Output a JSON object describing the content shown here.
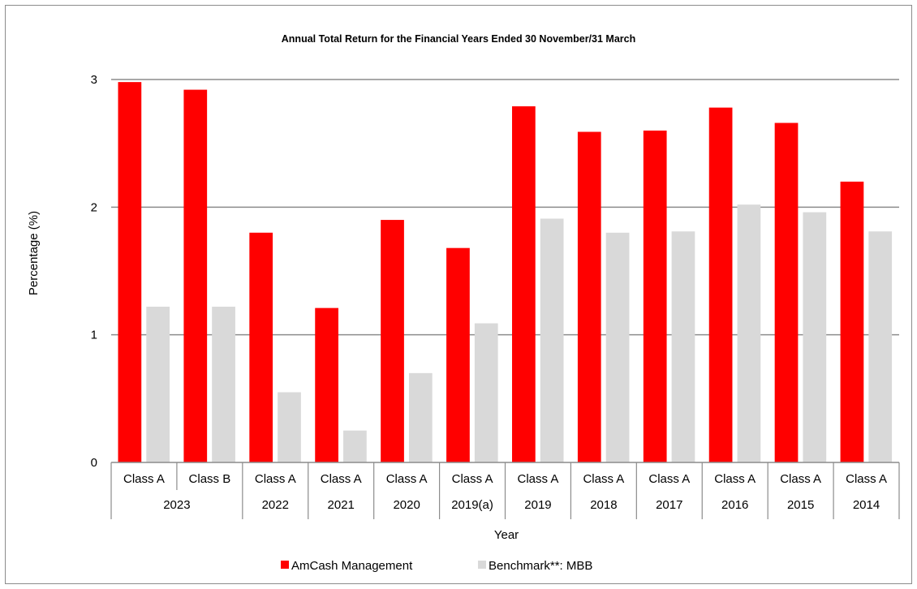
{
  "chart_data": {
    "type": "bar",
    "title": "Annual Total Return for the Financial Years Ended 30 November/31 March",
    "xlabel": "Year",
    "ylabel": "Percentage (%)",
    "ylim": [
      0,
      3
    ],
    "yticks": [
      0,
      1,
      2,
      3
    ],
    "grid": true,
    "legend_position": "bottom",
    "categories": [
      {
        "class": "Class A",
        "year": "2023"
      },
      {
        "class": "Class B",
        "year": "2023"
      },
      {
        "class": "Class A",
        "year": "2022"
      },
      {
        "class": "Class A",
        "year": "2021"
      },
      {
        "class": "Class A",
        "year": "2020"
      },
      {
        "class": "Class A",
        "year": "2019(a)"
      },
      {
        "class": "Class A",
        "year": "2019"
      },
      {
        "class": "Class A",
        "year": "2018"
      },
      {
        "class": "Class A",
        "year": "2017"
      },
      {
        "class": "Class A",
        "year": "2016"
      },
      {
        "class": "Class A",
        "year": "2015"
      },
      {
        "class": "Class A",
        "year": "2014"
      }
    ],
    "year_groups": [
      {
        "label": "2023",
        "span": 2
      },
      {
        "label": "2022",
        "span": 1
      },
      {
        "label": "2021",
        "span": 1
      },
      {
        "label": "2020",
        "span": 1
      },
      {
        "label": "2019(a)",
        "span": 1
      },
      {
        "label": "2019",
        "span": 1
      },
      {
        "label": "2018",
        "span": 1
      },
      {
        "label": "2017",
        "span": 1
      },
      {
        "label": "2016",
        "span": 1
      },
      {
        "label": "2015",
        "span": 1
      },
      {
        "label": "2014",
        "span": 1
      }
    ],
    "series": [
      {
        "name": "AmCash Management",
        "color": "#ff0000",
        "values": [
          2.98,
          2.92,
          1.8,
          1.21,
          1.9,
          1.68,
          2.79,
          2.59,
          2.6,
          2.78,
          2.66,
          2.2
        ]
      },
      {
        "name": "Benchmark**: MBB",
        "color": "#d9d9d9",
        "values": [
          1.22,
          1.22,
          0.55,
          0.25,
          0.7,
          1.09,
          1.91,
          1.8,
          1.81,
          2.02,
          1.96,
          1.81
        ]
      }
    ]
  }
}
